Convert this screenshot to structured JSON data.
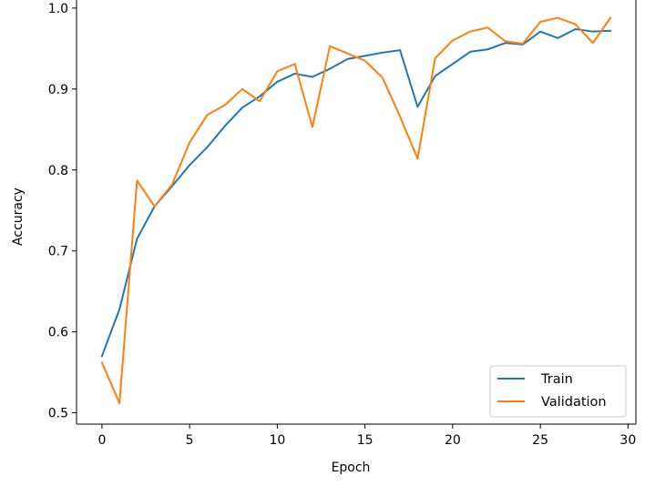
{
  "chart_data": {
    "type": "line",
    "title": "",
    "xlabel": "Epoch",
    "ylabel": "Accuracy",
    "xlim": [
      -1.45,
      30.45
    ],
    "ylim": [
      0.486,
      1.01
    ],
    "xticks": [
      0,
      5,
      10,
      15,
      20,
      25,
      30
    ],
    "xtick_labels": [
      "0",
      "5",
      "10",
      "15",
      "20",
      "25",
      "30"
    ],
    "yticks": [
      0.5,
      0.6,
      0.7,
      0.8,
      0.9,
      1.0
    ],
    "ytick_labels": [
      "0.5",
      "0.6",
      "0.7",
      "0.8",
      "0.9",
      "1.0"
    ],
    "grid": false,
    "legend_position": "lower-right",
    "x": [
      0,
      1,
      2,
      3,
      4,
      5,
      6,
      7,
      8,
      9,
      10,
      11,
      12,
      13,
      14,
      15,
      16,
      17,
      18,
      19,
      20,
      21,
      22,
      23,
      24,
      25,
      26,
      27,
      28,
      29
    ],
    "series": [
      {
        "name": "Train",
        "color": "#1f77b4",
        "values": [
          0.57,
          0.628,
          0.715,
          0.755,
          0.78,
          0.806,
          0.828,
          0.854,
          0.877,
          0.891,
          0.909,
          0.919,
          0.915,
          0.925,
          0.937,
          0.941,
          0.945,
          0.948,
          0.878,
          0.916,
          0.931,
          0.946,
          0.949,
          0.957,
          0.955,
          0.971,
          0.963,
          0.974,
          0.971,
          0.972
        ]
      },
      {
        "name": "Validation",
        "color": "#ff7f0e",
        "values": [
          0.562,
          0.512,
          0.787,
          0.755,
          0.782,
          0.834,
          0.868,
          0.88,
          0.9,
          0.885,
          0.922,
          0.931,
          0.853,
          0.953,
          0.944,
          0.935,
          0.914,
          0.866,
          0.814,
          0.938,
          0.96,
          0.971,
          0.976,
          0.959,
          0.956,
          0.983,
          0.988,
          0.98,
          0.957,
          0.988
        ]
      }
    ]
  }
}
